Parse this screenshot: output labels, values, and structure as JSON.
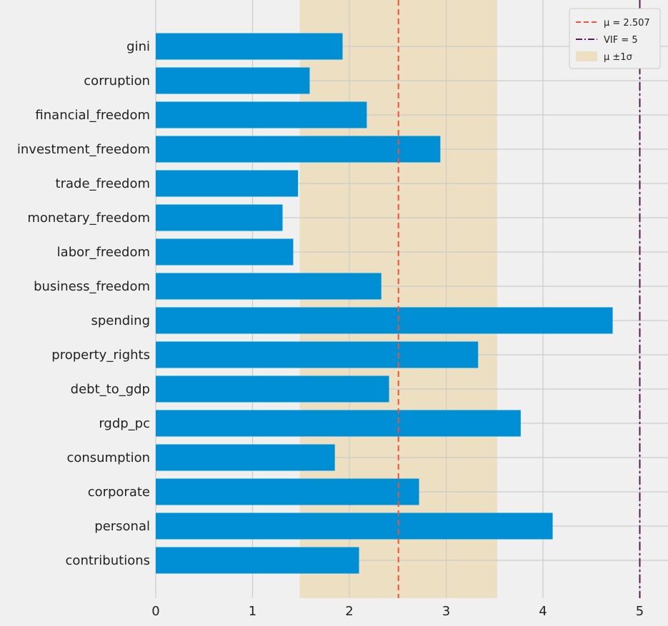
{
  "chart_data": {
    "type": "bar",
    "orientation": "horizontal",
    "categories": [
      "gini",
      "corruption",
      "financial_freedom",
      "investment_freedom",
      "trade_freedom",
      "monetary_freedom",
      "labor_freedom",
      "business_freedom",
      "spending",
      "property_rights",
      "debt_to_gdp",
      "rgdp_pc",
      "consumption",
      "corporate",
      "personal",
      "contributions"
    ],
    "values": [
      1.93,
      1.59,
      2.18,
      2.94,
      1.47,
      1.31,
      1.42,
      2.33,
      4.72,
      3.33,
      2.41,
      3.77,
      1.85,
      2.72,
      4.1,
      2.1
    ],
    "x_ticks": [
      "0",
      "1",
      "2",
      "3",
      "4",
      "5"
    ],
    "xlim": [
      0,
      5.2
    ],
    "mean": 2.507,
    "sigma": 1.02,
    "vif_threshold": 5,
    "grid": true,
    "legend_position": "top-right",
    "legend": [
      {
        "label": "μ = 2.507",
        "style": "dashed-line"
      },
      {
        "label": "VIF = 5",
        "style": "dashdot-line"
      },
      {
        "label": "μ ±1σ",
        "style": "band"
      }
    ],
    "colors": {
      "bar": "#008fd5",
      "mean_line": "#fc4f30",
      "vif_line": "#5b1a55",
      "band": "#e5ae38",
      "grid": "#cbcbcb",
      "background": "#f0f0f0"
    }
  }
}
